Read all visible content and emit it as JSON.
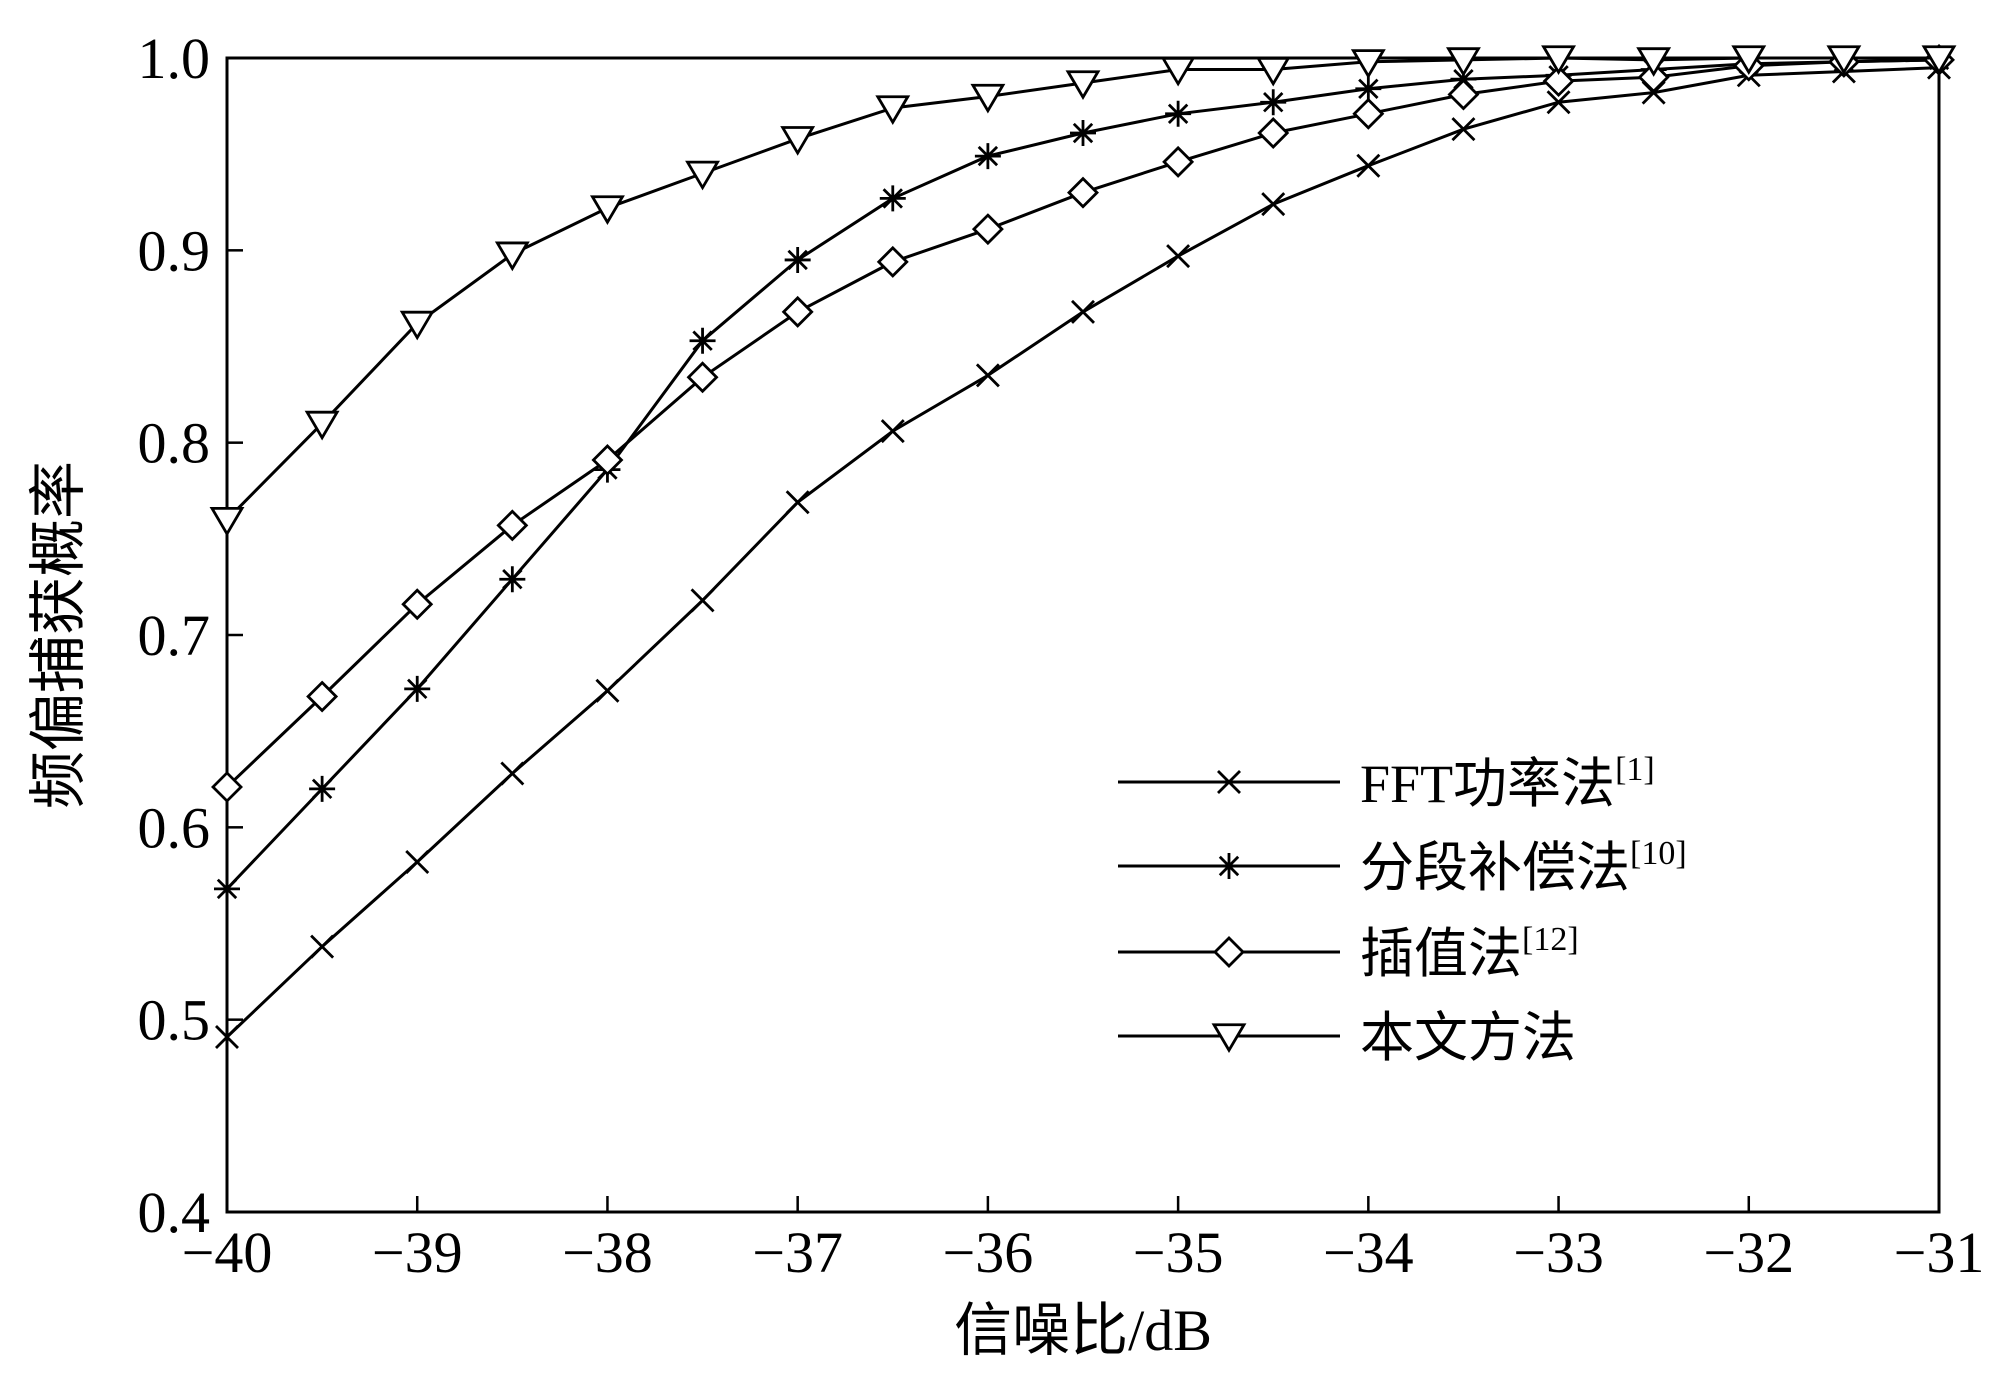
{
  "chart_data": {
    "type": "line",
    "xlabel": "信噪比/dB",
    "ylabel": "频偏捕获概率",
    "xlim": [
      -40,
      -31
    ],
    "ylim": [
      0.4,
      1.0
    ],
    "xticks": [
      -40,
      -39,
      -38,
      -37,
      -36,
      -35,
      -34,
      -33,
      -32,
      -31
    ],
    "xtick_labels": [
      "−40",
      "−39",
      "−38",
      "−37",
      "−36",
      "−35",
      "−34",
      "−33",
      "−32",
      "−31"
    ],
    "yticks": [
      0.4,
      0.5,
      0.6,
      0.7,
      0.8,
      0.9,
      1.0
    ],
    "ytick_labels": [
      "0.4",
      "0.5",
      "0.6",
      "0.7",
      "0.8",
      "0.9",
      "1.0"
    ],
    "x": [
      -40,
      -39.5,
      -39,
      -38.5,
      -38,
      -37.5,
      -37,
      -36.5,
      -36,
      -35.5,
      -35,
      -34.5,
      -34,
      -33.5,
      -33,
      -32.5,
      -32,
      -31.5,
      -31
    ],
    "grid": false,
    "legend_position": "bottom-right",
    "line_color": "#000000",
    "series": [
      {
        "name": "FFT功率法",
        "ref": "[1]",
        "marker": "x",
        "values": [
          0.491,
          0.538,
          0.582,
          0.628,
          0.671,
          0.718,
          0.769,
          0.806,
          0.835,
          0.868,
          0.897,
          0.924,
          0.944,
          0.963,
          0.977,
          0.982,
          0.991,
          0.993,
          0.995
        ]
      },
      {
        "name": "分段补偿法",
        "ref": "[10]",
        "marker": "asterisk",
        "values": [
          0.568,
          0.62,
          0.672,
          0.729,
          0.786,
          0.853,
          0.895,
          0.927,
          0.949,
          0.961,
          0.971,
          0.977,
          0.984,
          0.989,
          0.991,
          0.994,
          0.997,
          0.998,
          0.999
        ]
      },
      {
        "name": "插值法",
        "ref": "[12]",
        "marker": "diamond",
        "values": [
          0.621,
          0.668,
          0.716,
          0.757,
          0.791,
          0.834,
          0.868,
          0.894,
          0.911,
          0.93,
          0.946,
          0.961,
          0.971,
          0.981,
          0.988,
          0.99,
          0.996,
          0.998,
          0.999
        ]
      },
      {
        "name": "本文方法",
        "ref": "",
        "marker": "triangle-down",
        "values": [
          0.76,
          0.81,
          0.862,
          0.898,
          0.922,
          0.94,
          0.958,
          0.974,
          0.98,
          0.987,
          0.994,
          0.994,
          0.998,
          0.999,
          1.0,
          0.999,
          1.0,
          1.0,
          1.0
        ]
      }
    ]
  }
}
